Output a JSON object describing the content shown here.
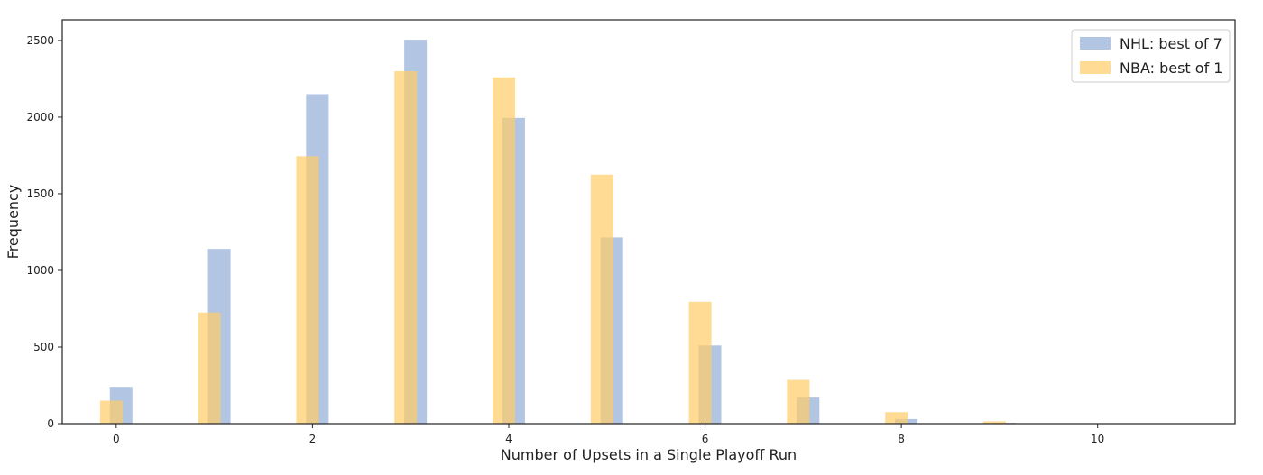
{
  "colors": {
    "nhl": "#7f9ed1",
    "nba": "#ffcc66",
    "axis": "#222222",
    "background": "#ffffff"
  },
  "chart_data": {
    "type": "bar",
    "title": "",
    "xlabel": "Number of Upsets in a Single Playoff Run",
    "ylabel": "Frequency",
    "xlim": [
      -0.55,
      11.4
    ],
    "ylim": [
      0,
      2635
    ],
    "xticks": [
      0,
      2,
      4,
      6,
      8,
      10
    ],
    "yticks": [
      0,
      500,
      1000,
      1500,
      2000,
      2500
    ],
    "grid": false,
    "legend_position": "top-right",
    "series": [
      {
        "name": "NHL: best of 7",
        "x": [
          0,
          1,
          2,
          3,
          4,
          5,
          6,
          7,
          8,
          9
        ],
        "values": [
          240,
          1140,
          2150,
          2505,
          1995,
          1215,
          510,
          170,
          30,
          5
        ],
        "opacity": 0.6
      },
      {
        "name": "NBA: best of 1",
        "x": [
          0,
          1,
          2,
          3,
          4,
          5,
          6,
          7,
          8,
          9
        ],
        "values": [
          150,
          725,
          1745,
          2300,
          2260,
          1625,
          795,
          285,
          75,
          15
        ],
        "opacity": 0.7
      }
    ]
  }
}
